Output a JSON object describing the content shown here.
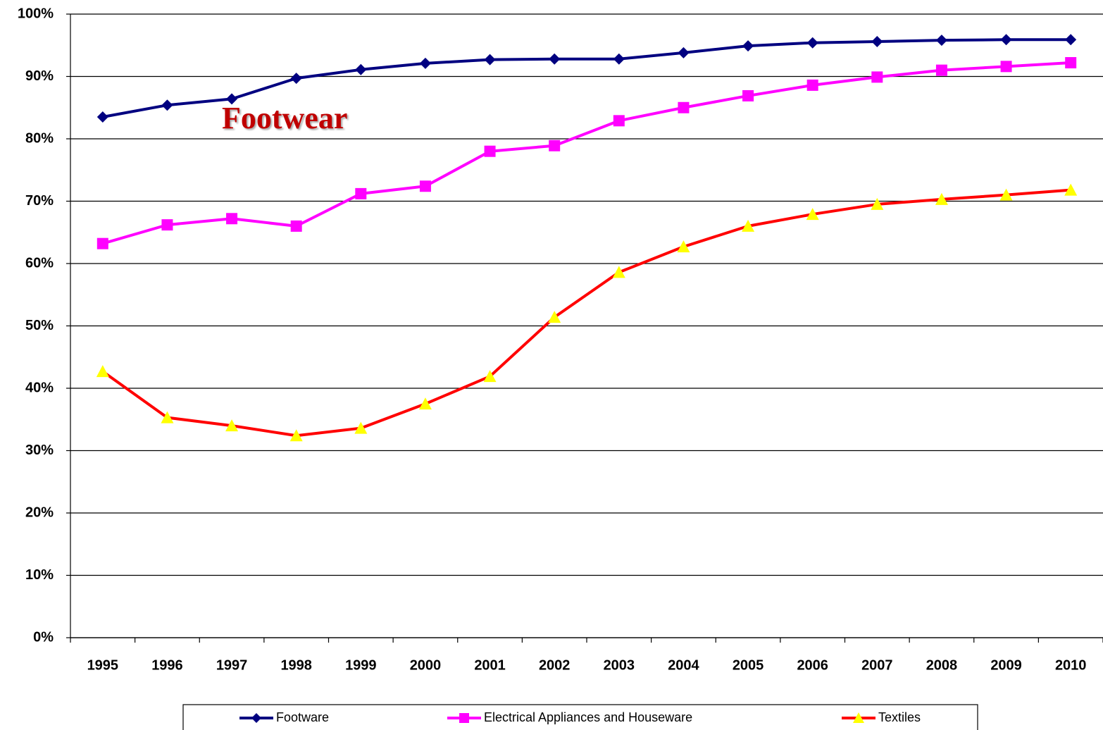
{
  "chart_data": {
    "type": "line",
    "categories": [
      "1995",
      "1996",
      "1997",
      "1998",
      "1999",
      "2000",
      "2001",
      "2002",
      "2003",
      "2004",
      "2005",
      "2006",
      "2007",
      "2008",
      "2009",
      "2010"
    ],
    "series": [
      {
        "name": "Footware",
        "color": "#000080",
        "marker_color": "#000080",
        "marker": "diamond",
        "values": [
          83.5,
          85.4,
          86.4,
          89.7,
          91.1,
          92.1,
          92.7,
          92.8,
          92.8,
          93.8,
          94.9,
          95.4,
          95.6,
          95.8,
          95.9,
          95.9
        ]
      },
      {
        "name": "Electrical Appliances and Houseware",
        "color": "#ff00ff",
        "marker_color": "#ff00ff",
        "marker": "square",
        "values": [
          63.2,
          66.2,
          67.2,
          66.0,
          71.2,
          72.4,
          78.0,
          78.9,
          82.9,
          85.0,
          86.9,
          88.6,
          89.9,
          91.0,
          91.6,
          92.2
        ]
      },
      {
        "name": "Textiles",
        "color": "#ff0000",
        "marker_color": "#ffff00",
        "marker": "triangle",
        "values": [
          42.7,
          35.3,
          34.0,
          32.4,
          33.6,
          37.5,
          41.9,
          51.4,
          58.6,
          62.7,
          66.0,
          67.9,
          69.5,
          70.3,
          71.0,
          71.8
        ]
      }
    ],
    "annotations": [
      {
        "text": "Footwear",
        "color": "#c00000"
      }
    ],
    "ylim": [
      0,
      100
    ],
    "yticks": [
      {
        "value": 0,
        "label": "0%"
      },
      {
        "value": 10,
        "label": "10%"
      },
      {
        "value": 20,
        "label": "20%"
      },
      {
        "value": 30,
        "label": "30%"
      },
      {
        "value": 40,
        "label": "40%"
      },
      {
        "value": 50,
        "label": "50%"
      },
      {
        "value": 60,
        "label": "60%"
      },
      {
        "value": 70,
        "label": "70%"
      },
      {
        "value": 80,
        "label": "80%"
      },
      {
        "value": 90,
        "label": "90%"
      },
      {
        "value": 100,
        "label": "100%"
      }
    ],
    "grid": true,
    "legend": "bottom"
  }
}
